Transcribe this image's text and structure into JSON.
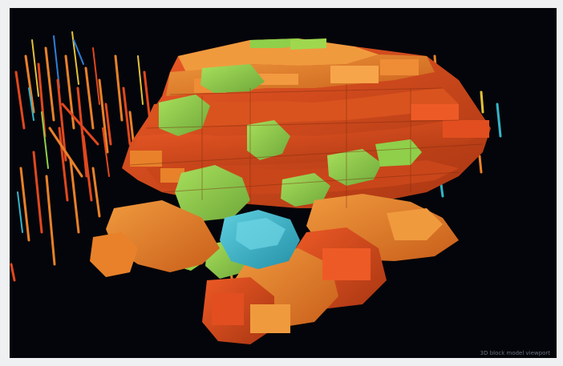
{
  "viewport": {
    "colors": {
      "background": "#04050a",
      "orange": "#e8812a",
      "red_orange": "#e0481e",
      "green": "#8fcf4a",
      "cyan": "#35b4c8",
      "blue": "#2e7fd6",
      "yellow": "#e2c23a"
    },
    "caption": "3D block model viewport"
  }
}
